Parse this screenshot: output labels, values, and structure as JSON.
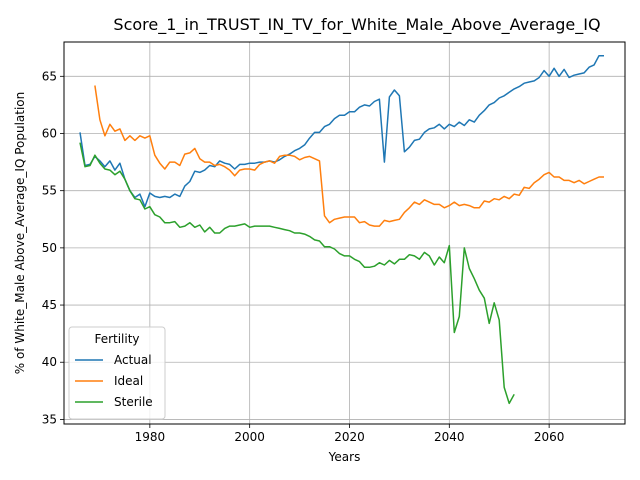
{
  "chart_data": {
    "type": "line",
    "title": "Score_1_in_TRUST_IN_TV_for_White_Male_Above_Average_IQ",
    "xlabel": "Years",
    "ylabel": "% of White_Male Above_Average_IQ Population",
    "xlim": [
      1962.8,
      2075.2
    ],
    "ylim": [
      34.6,
      68.0
    ],
    "x_ticks": [
      1980,
      2000,
      2020,
      2040,
      2060
    ],
    "y_ticks": [
      35,
      40,
      45,
      50,
      55,
      60,
      65
    ],
    "grid": true,
    "legend": {
      "title": "Fertility",
      "placement": "lower-left"
    },
    "series": [
      {
        "name": "Actual",
        "color": "#1f77b4",
        "points": [
          [
            1966,
            60.1
          ],
          [
            1967,
            57.2
          ],
          [
            1968,
            57.3
          ],
          [
            1969,
            58.0
          ],
          [
            1970,
            57.6
          ],
          [
            1971,
            57.1
          ],
          [
            1972,
            57.6
          ],
          [
            1973,
            56.8
          ],
          [
            1974,
            57.4
          ],
          [
            1975,
            56.0
          ],
          [
            1976,
            55.0
          ],
          [
            1977,
            54.4
          ],
          [
            1978,
            54.7
          ],
          [
            1979,
            53.6
          ],
          [
            1980,
            54.8
          ],
          [
            1981,
            54.5
          ],
          [
            1982,
            54.4
          ],
          [
            1983,
            54.5
          ],
          [
            1984,
            54.4
          ],
          [
            1985,
            54.7
          ],
          [
            1986,
            54.5
          ],
          [
            1987,
            55.4
          ],
          [
            1988,
            55.8
          ],
          [
            1989,
            56.7
          ],
          [
            1990,
            56.6
          ],
          [
            1991,
            56.8
          ],
          [
            1992,
            57.2
          ],
          [
            1993,
            57.1
          ],
          [
            1994,
            57.6
          ],
          [
            1995,
            57.4
          ],
          [
            1996,
            57.3
          ],
          [
            1997,
            56.9
          ],
          [
            1998,
            57.3
          ],
          [
            1999,
            57.3
          ],
          [
            2000,
            57.4
          ],
          [
            2001,
            57.4
          ],
          [
            2002,
            57.5
          ],
          [
            2003,
            57.5
          ],
          [
            2004,
            57.6
          ],
          [
            2005,
            57.5
          ],
          [
            2006,
            57.7
          ],
          [
            2007,
            58.0
          ],
          [
            2008,
            58.2
          ],
          [
            2009,
            58.5
          ],
          [
            2010,
            58.7
          ],
          [
            2011,
            59.0
          ],
          [
            2012,
            59.6
          ],
          [
            2013,
            60.1
          ],
          [
            2014,
            60.1
          ],
          [
            2015,
            60.6
          ],
          [
            2016,
            60.8
          ],
          [
            2017,
            61.3
          ],
          [
            2018,
            61.6
          ],
          [
            2019,
            61.6
          ],
          [
            2020,
            61.9
          ],
          [
            2021,
            61.9
          ],
          [
            2022,
            62.3
          ],
          [
            2023,
            62.5
          ],
          [
            2024,
            62.4
          ],
          [
            2025,
            62.8
          ],
          [
            2026,
            63.0
          ],
          [
            2027,
            57.5
          ],
          [
            2028,
            63.2
          ],
          [
            2029,
            63.8
          ],
          [
            2030,
            63.3
          ],
          [
            2031,
            58.4
          ],
          [
            2032,
            58.8
          ],
          [
            2033,
            59.4
          ],
          [
            2034,
            59.5
          ],
          [
            2035,
            60.1
          ],
          [
            2036,
            60.4
          ],
          [
            2037,
            60.5
          ],
          [
            2038,
            60.8
          ],
          [
            2039,
            60.4
          ],
          [
            2040,
            60.8
          ],
          [
            2041,
            60.6
          ],
          [
            2042,
            61.0
          ],
          [
            2043,
            60.7
          ],
          [
            2044,
            61.2
          ],
          [
            2045,
            61.0
          ],
          [
            2046,
            61.6
          ],
          [
            2047,
            62.0
          ],
          [
            2048,
            62.5
          ],
          [
            2049,
            62.7
          ],
          [
            2050,
            63.1
          ],
          [
            2051,
            63.3
          ],
          [
            2052,
            63.6
          ],
          [
            2053,
            63.9
          ],
          [
            2054,
            64.1
          ],
          [
            2055,
            64.4
          ],
          [
            2056,
            64.5
          ],
          [
            2057,
            64.6
          ],
          [
            2058,
            64.9
          ],
          [
            2059,
            65.5
          ],
          [
            2060,
            65.0
          ],
          [
            2061,
            65.7
          ],
          [
            2062,
            65.0
          ],
          [
            2063,
            65.6
          ],
          [
            2064,
            64.9
          ],
          [
            2065,
            65.1
          ],
          [
            2066,
            65.2
          ],
          [
            2067,
            65.3
          ],
          [
            2068,
            65.8
          ],
          [
            2069,
            66.0
          ],
          [
            2070,
            66.8
          ],
          [
            2071,
            66.8
          ]
        ]
      },
      {
        "name": "Ideal",
        "color": "#ff7f0e",
        "points": [
          [
            1969,
            64.2
          ],
          [
            1970,
            61.2
          ],
          [
            1971,
            59.8
          ],
          [
            1972,
            60.8
          ],
          [
            1973,
            60.2
          ],
          [
            1974,
            60.4
          ],
          [
            1975,
            59.4
          ],
          [
            1976,
            59.8
          ],
          [
            1977,
            59.4
          ],
          [
            1978,
            59.8
          ],
          [
            1979,
            59.6
          ],
          [
            1980,
            59.8
          ],
          [
            1981,
            58.1
          ],
          [
            1982,
            57.4
          ],
          [
            1983,
            56.9
          ],
          [
            1984,
            57.5
          ],
          [
            1985,
            57.5
          ],
          [
            1986,
            57.2
          ],
          [
            1987,
            58.2
          ],
          [
            1988,
            58.3
          ],
          [
            1989,
            58.7
          ],
          [
            1990,
            57.8
          ],
          [
            1991,
            57.5
          ],
          [
            1992,
            57.5
          ],
          [
            1993,
            57.2
          ],
          [
            1994,
            57.3
          ],
          [
            1995,
            57.1
          ],
          [
            1996,
            56.8
          ],
          [
            1997,
            56.3
          ],
          [
            1998,
            56.8
          ],
          [
            1999,
            56.9
          ],
          [
            2000,
            56.9
          ],
          [
            2001,
            56.8
          ],
          [
            2002,
            57.3
          ],
          [
            2003,
            57.5
          ],
          [
            2004,
            57.6
          ],
          [
            2005,
            57.4
          ],
          [
            2006,
            58.0
          ],
          [
            2007,
            58.1
          ],
          [
            2008,
            58.1
          ],
          [
            2009,
            58.0
          ],
          [
            2010,
            57.7
          ],
          [
            2011,
            57.9
          ],
          [
            2012,
            58.0
          ],
          [
            2013,
            57.8
          ],
          [
            2014,
            57.6
          ],
          [
            2015,
            52.8
          ],
          [
            2016,
            52.2
          ],
          [
            2017,
            52.5
          ],
          [
            2018,
            52.6
          ],
          [
            2019,
            52.7
          ],
          [
            2020,
            52.7
          ],
          [
            2021,
            52.7
          ],
          [
            2022,
            52.2
          ],
          [
            2023,
            52.3
          ],
          [
            2024,
            52.0
          ],
          [
            2025,
            51.9
          ],
          [
            2026,
            51.9
          ],
          [
            2027,
            52.4
          ],
          [
            2028,
            52.3
          ],
          [
            2029,
            52.4
          ],
          [
            2030,
            52.5
          ],
          [
            2031,
            53.1
          ],
          [
            2032,
            53.5
          ],
          [
            2033,
            54.0
          ],
          [
            2034,
            53.8
          ],
          [
            2035,
            54.2
          ],
          [
            2036,
            54.0
          ],
          [
            2037,
            53.8
          ],
          [
            2038,
            53.8
          ],
          [
            2039,
            53.5
          ],
          [
            2040,
            53.7
          ],
          [
            2041,
            54.0
          ],
          [
            2042,
            53.7
          ],
          [
            2043,
            53.8
          ],
          [
            2044,
            53.7
          ],
          [
            2045,
            53.5
          ],
          [
            2046,
            53.5
          ],
          [
            2047,
            54.1
          ],
          [
            2048,
            54.0
          ],
          [
            2049,
            54.3
          ],
          [
            2050,
            54.2
          ],
          [
            2051,
            54.5
          ],
          [
            2052,
            54.3
          ],
          [
            2053,
            54.7
          ],
          [
            2054,
            54.6
          ],
          [
            2055,
            55.3
          ],
          [
            2056,
            55.2
          ],
          [
            2057,
            55.7
          ],
          [
            2058,
            56.0
          ],
          [
            2059,
            56.4
          ],
          [
            2060,
            56.6
          ],
          [
            2061,
            56.2
          ],
          [
            2062,
            56.2
          ],
          [
            2063,
            55.9
          ],
          [
            2064,
            55.9
          ],
          [
            2065,
            55.7
          ],
          [
            2066,
            55.9
          ],
          [
            2067,
            55.6
          ],
          [
            2068,
            55.8
          ],
          [
            2069,
            56.0
          ],
          [
            2070,
            56.2
          ],
          [
            2071,
            56.2
          ]
        ]
      },
      {
        "name": "Sterile",
        "color": "#2ca02c",
        "points": [
          [
            1966,
            59.2
          ],
          [
            1967,
            57.1
          ],
          [
            1968,
            57.2
          ],
          [
            1969,
            58.1
          ],
          [
            1970,
            57.4
          ],
          [
            1971,
            56.9
          ],
          [
            1972,
            56.8
          ],
          [
            1973,
            56.4
          ],
          [
            1974,
            56.7
          ],
          [
            1975,
            56.0
          ],
          [
            1976,
            55.0
          ],
          [
            1977,
            54.3
          ],
          [
            1978,
            54.2
          ],
          [
            1979,
            53.4
          ],
          [
            1980,
            53.6
          ],
          [
            1981,
            52.9
          ],
          [
            1982,
            52.7
          ],
          [
            1983,
            52.2
          ],
          [
            1984,
            52.2
          ],
          [
            1985,
            52.3
          ],
          [
            1986,
            51.8
          ],
          [
            1987,
            51.9
          ],
          [
            1988,
            52.2
          ],
          [
            1989,
            51.8
          ],
          [
            1990,
            52.0
          ],
          [
            1991,
            51.4
          ],
          [
            1992,
            51.8
          ],
          [
            1993,
            51.3
          ],
          [
            1994,
            51.3
          ],
          [
            1995,
            51.7
          ],
          [
            1996,
            51.9
          ],
          [
            1997,
            51.9
          ],
          [
            1998,
            52.0
          ],
          [
            1999,
            52.1
          ],
          [
            2000,
            51.8
          ],
          [
            2001,
            51.9
          ],
          [
            2002,
            51.9
          ],
          [
            2003,
            51.9
          ],
          [
            2004,
            51.9
          ],
          [
            2005,
            51.8
          ],
          [
            2006,
            51.7
          ],
          [
            2007,
            51.6
          ],
          [
            2008,
            51.5
          ],
          [
            2009,
            51.3
          ],
          [
            2010,
            51.3
          ],
          [
            2011,
            51.2
          ],
          [
            2012,
            51.0
          ],
          [
            2013,
            50.7
          ],
          [
            2014,
            50.6
          ],
          [
            2015,
            50.1
          ],
          [
            2016,
            50.1
          ],
          [
            2017,
            49.9
          ],
          [
            2018,
            49.5
          ],
          [
            2019,
            49.3
          ],
          [
            2020,
            49.3
          ],
          [
            2021,
            49.0
          ],
          [
            2022,
            48.8
          ],
          [
            2023,
            48.3
          ],
          [
            2024,
            48.3
          ],
          [
            2025,
            48.4
          ],
          [
            2026,
            48.7
          ],
          [
            2027,
            48.5
          ],
          [
            2028,
            48.9
          ],
          [
            2029,
            48.6
          ],
          [
            2030,
            49.0
          ],
          [
            2031,
            49.0
          ],
          [
            2032,
            49.4
          ],
          [
            2033,
            49.3
          ],
          [
            2034,
            49.0
          ],
          [
            2035,
            49.6
          ],
          [
            2036,
            49.3
          ],
          [
            2037,
            48.5
          ],
          [
            2038,
            49.2
          ],
          [
            2039,
            48.7
          ],
          [
            2040,
            50.2
          ],
          [
            2041,
            42.6
          ],
          [
            2042,
            44.0
          ],
          [
            2043,
            50.0
          ],
          [
            2044,
            48.2
          ],
          [
            2045,
            47.3
          ],
          [
            2046,
            46.3
          ],
          [
            2047,
            45.6
          ],
          [
            2048,
            43.4
          ],
          [
            2049,
            45.2
          ],
          [
            2050,
            43.7
          ],
          [
            2051,
            37.8
          ],
          [
            2052,
            36.4
          ],
          [
            2053,
            37.2
          ]
        ]
      }
    ]
  }
}
